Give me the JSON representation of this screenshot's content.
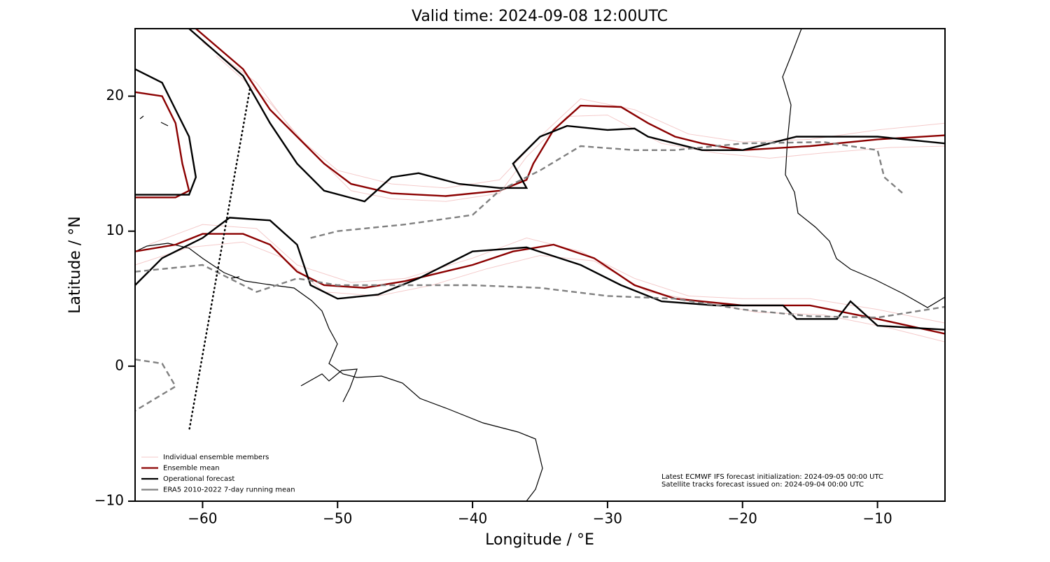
{
  "chart_data": {
    "type": "line",
    "title": "Valid time: 2024-09-08 12:00UTC",
    "xlabel": "Longitude / °E",
    "ylabel": "Latitude / °N",
    "xlim": [
      -65,
      -5
    ],
    "ylim": [
      -10,
      25
    ],
    "xticks": [
      {
        "value": -60,
        "label": "−60"
      },
      {
        "value": -50,
        "label": "−50"
      },
      {
        "value": -40,
        "label": "−40"
      },
      {
        "value": -30,
        "label": "−30"
      },
      {
        "value": -20,
        "label": "−20"
      },
      {
        "value": -10,
        "label": "−10"
      }
    ],
    "yticks": [
      {
        "value": -10,
        "label": "−10"
      },
      0,
      10,
      20
    ],
    "legend": "lower left",
    "annotations": [
      "Latest ECMWF IFS forecast initialization: 2024-09-05 00:00 UTC",
      "Satellite tracks forecast issued on: 2024-09-04 00:00 UTC"
    ],
    "series": [
      {
        "name": "Individual ensemble members",
        "color": "#e06666",
        "x": [
          -60,
          -56,
          -53,
          -50,
          -46,
          -42,
          -38,
          -35,
          -32,
          -28,
          -24,
          -20,
          -15,
          -10,
          -5,
          null,
          -64,
          -60,
          -56,
          -53,
          -49,
          -45,
          -40,
          -36,
          -32,
          -28,
          -24,
          -20,
          -15,
          -10,
          -5,
          null,
          -59,
          -55,
          -52,
          -49,
          -46,
          -42,
          -38,
          -36,
          -33,
          -30,
          -26,
          -22,
          -18,
          -14,
          -9,
          -5,
          null,
          -65,
          -61,
          -57,
          -54,
          -51,
          -47,
          -43,
          -39,
          -35,
          -31,
          -27,
          -23,
          -19,
          -14,
          -9,
          -5
        ],
        "y": [
          24,
          21,
          17,
          14.5,
          13.5,
          13.2,
          13.8,
          17,
          19.8,
          19,
          17.2,
          16.6,
          16.8,
          17.5,
          18,
          null,
          9,
          10.5,
          10.2,
          7.5,
          6.2,
          6.5,
          8,
          9.5,
          8.5,
          6.5,
          5.2,
          5,
          5,
          4.2,
          3.2,
          null,
          23,
          19.5,
          16,
          13,
          12.4,
          12.2,
          12.8,
          15.5,
          18.5,
          18.6,
          16.5,
          15.8,
          15.4,
          15.8,
          16.2,
          16.3,
          null,
          7.5,
          8.8,
          9.2,
          8,
          5.5,
          5.2,
          6,
          7.2,
          8.2,
          7.8,
          5.5,
          4.8,
          4,
          3.8,
          2.8,
          1.8
        ]
      },
      {
        "name": "Ensemble mean",
        "color": "#8b0000",
        "x": [
          -65,
          -63,
          -62,
          -61.5,
          -61,
          -62,
          -65,
          null,
          -60.5,
          -57,
          -55,
          -53,
          -51,
          -49,
          -46,
          -42,
          -38,
          -36,
          -35.5,
          -34,
          -32,
          -29,
          -27,
          -25,
          -23,
          -20,
          -15,
          -10,
          -5,
          null,
          -65,
          -62,
          -60,
          -57,
          -55,
          -53,
          -51,
          -48,
          -45,
          -40,
          -37,
          -34,
          -31,
          -28,
          -25,
          -20,
          -15,
          -10,
          -5
        ],
        "y": [
          20.3,
          20,
          18,
          15,
          13,
          12.5,
          12.5,
          null,
          25,
          22,
          19,
          17,
          15,
          13.5,
          12.8,
          12.6,
          13,
          13.8,
          15,
          17.5,
          19.3,
          19.2,
          18,
          17,
          16.5,
          16,
          16.3,
          16.8,
          17.1,
          null,
          8.5,
          9,
          9.8,
          9.8,
          9,
          7,
          6,
          5.8,
          6.3,
          7.5,
          8.5,
          9,
          8,
          6,
          5,
          4.5,
          4.5,
          3.5,
          2.4
        ]
      },
      {
        "name": "Operational forecast",
        "color": "#000000",
        "x": [
          -65,
          -63,
          -62,
          -61,
          -60.5,
          -61,
          -65,
          null,
          -61,
          -57,
          -55,
          -53,
          -51,
          -48,
          -46,
          -44,
          -41,
          -38,
          -36,
          -37,
          -35,
          -33,
          -30,
          -28,
          -27,
          -25,
          -23,
          -20,
          -16,
          -10,
          -5,
          null,
          -65,
          -63,
          -60,
          -58,
          -55,
          -53,
          -52,
          -50,
          -47,
          -44,
          -40,
          -36,
          -32,
          -29,
          -26,
          -22,
          -17,
          -16,
          -13,
          -12,
          -10,
          -5
        ],
        "y": [
          22,
          21,
          19,
          17,
          14,
          12.7,
          12.7,
          null,
          25,
          21.5,
          18,
          15,
          13,
          12.2,
          14,
          14.3,
          13.5,
          13.2,
          13.2,
          15,
          17,
          17.8,
          17.5,
          17.6,
          17,
          16.5,
          16,
          16,
          17,
          17,
          16.5,
          null,
          6,
          8,
          9.5,
          11,
          10.8,
          9,
          6,
          5,
          5.3,
          6.5,
          8.5,
          8.8,
          7.5,
          6,
          4.8,
          4.5,
          4.5,
          3.5,
          3.5,
          4.8,
          3,
          2.7
        ]
      },
      {
        "name": "ERA5 2010-2022 7-day running mean",
        "color": "#808080",
        "x": [
          -52,
          -50,
          -45,
          -40,
          -38,
          -35,
          -32,
          -28,
          -25,
          -20,
          -14,
          -10,
          -9.5,
          -8,
          null,
          -65,
          -60,
          -58,
          -56,
          -53,
          -50,
          -45,
          -40,
          -35,
          -30,
          -25,
          -20,
          -15,
          -10,
          -5,
          null,
          -65,
          -63,
          -62,
          -65
        ],
        "y": [
          9.5,
          10,
          10.5,
          11.2,
          13,
          14.5,
          16.3,
          16,
          16,
          16.5,
          16.6,
          16,
          14,
          12.7,
          null,
          7,
          7.5,
          6.5,
          5.5,
          6.5,
          6,
          6,
          6,
          5.8,
          5.2,
          5,
          4.2,
          3.7,
          3.6,
          4.4,
          null,
          0.5,
          0.2,
          -1.5,
          -3.3
        ]
      }
    ],
    "track": {
      "color": "#000000",
      "x": [
        -56.5,
        -61
      ],
      "y": [
        20.5,
        -4.8
      ]
    }
  }
}
